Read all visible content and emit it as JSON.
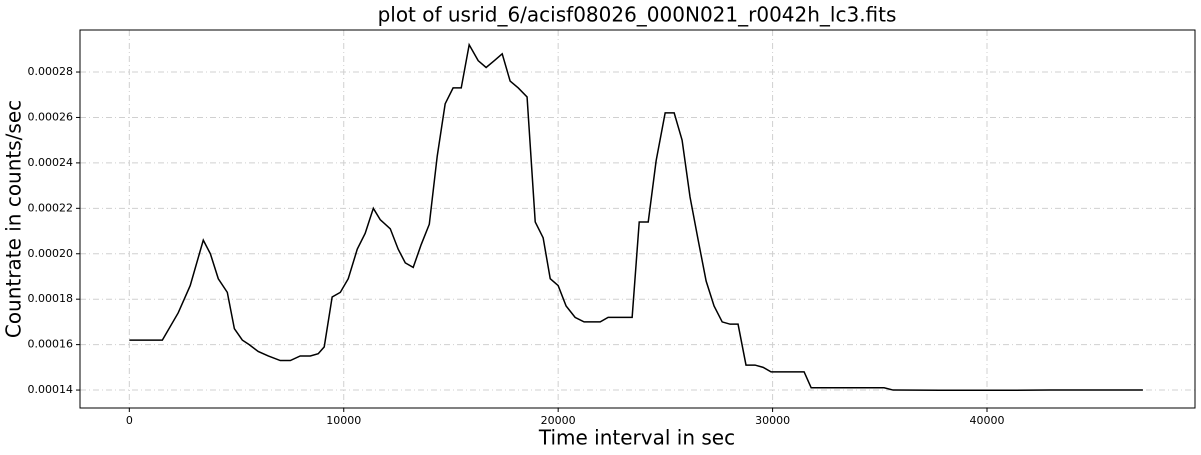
{
  "chart_data": {
    "type": "line",
    "title": "plot of usrid_6/acisf08026_000N021_r0042h_lc3.fits",
    "x_label": "Time interval in sec",
    "y_label": "Countrate in counts/sec",
    "color": "#000000",
    "grid": true,
    "x": [
      0,
      980,
      1540,
      2280,
      2840,
      3450,
      3780,
      4150,
      4570,
      4900,
      5270,
      5590,
      6010,
      6480,
      7040,
      7510,
      7970,
      8440,
      8810,
      9090,
      9460,
      9840,
      10210,
      10630,
      11000,
      11380,
      11700,
      12170,
      12540,
      12870,
      13240,
      13610,
      13990,
      14360,
      14730,
      15100,
      15480,
      15850,
      16270,
      16640,
      17020,
      17390,
      17760,
      18140,
      18550,
      18930,
      19300,
      19630,
      20000,
      20370,
      20790,
      21210,
      21590,
      21960,
      22330,
      22750,
      23120,
      23450,
      23780,
      24200,
      24570,
      24990,
      25410,
      25780,
      26150,
      26530,
      26900,
      27270,
      27650,
      28020,
      28390,
      28760,
      29180,
      29560,
      29930,
      30820,
      31470,
      31800,
      32680,
      34080,
      35200,
      35620,
      37810,
      40610,
      42940,
      45270,
      47270
    ],
    "values": [
      0.000162,
      0.000162,
      0.000162,
      0.000174,
      0.000186,
      0.000206,
      0.0002,
      0.000189,
      0.000183,
      0.000167,
      0.000162,
      0.00016,
      0.000157,
      0.000155,
      0.000153,
      0.000153,
      0.000155,
      0.000155,
      0.000156,
      0.000159,
      0.000181,
      0.000183,
      0.000189,
      0.000202,
      0.000209,
      0.00022,
      0.000215,
      0.000211,
      0.000202,
      0.000196,
      0.000194,
      0.000204,
      0.000213,
      0.000243,
      0.000266,
      0.000273,
      0.000273,
      0.000292,
      0.000285,
      0.000282,
      0.000285,
      0.000288,
      0.000276,
      0.000273,
      0.000269,
      0.000214,
      0.000207,
      0.000189,
      0.000186,
      0.000177,
      0.000172,
      0.00017,
      0.00017,
      0.00017,
      0.000172,
      0.000172,
      0.000172,
      0.000172,
      0.000214,
      0.000214,
      0.000241,
      0.000262,
      0.000262,
      0.00025,
      0.000225,
      0.000206,
      0.000188,
      0.000177,
      0.00017,
      0.000169,
      0.000169,
      0.000151,
      0.000151,
      0.00015,
      0.000148,
      0.000148,
      0.000148,
      0.000141,
      0.000141,
      0.000141,
      0.000141,
      0.00014,
      0.0001399,
      0.0001399,
      0.00014,
      0.00014,
      0.00014
    ],
    "xlim": [
      -2300,
      49700
    ],
    "xticks": [
      0,
      10000,
      20000,
      30000,
      40000
    ],
    "ylim": [
      0.0001321,
      0.0002985
    ],
    "yticks": [
      0.00014,
      0.00016,
      0.00018,
      {
        "value": 0.0002,
        "label": "0.00020"
      },
      0.00022,
      0.00024,
      0.00026,
      0.00028
    ]
  }
}
